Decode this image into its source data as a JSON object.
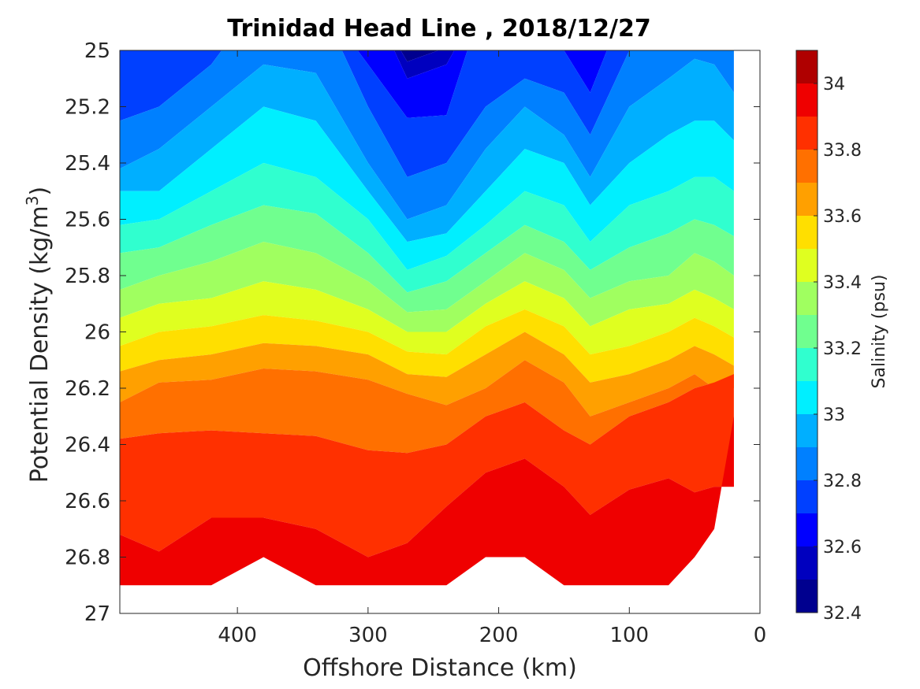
{
  "chart_data": {
    "type": "heatmap",
    "subtype": "filled-contour",
    "title": "Trinidad Head Line , 2018/12/27",
    "xlabel": "Offshore Distance (km)",
    "ylabel_main": "Potential Density (kg/m",
    "ylabel_sup": "3",
    "ylabel_close": ")",
    "colorbar_label": "Salinity (psu)",
    "xlim": [
      0,
      490
    ],
    "x_reversed": true,
    "ylim": [
      25,
      27
    ],
    "y_reversed": true,
    "x_ticks": [
      400,
      300,
      200,
      100,
      0
    ],
    "y_ticks": [
      25,
      25.2,
      25.4,
      25.6,
      25.8,
      26,
      26.2,
      26.4,
      26.6,
      26.8,
      27
    ],
    "y_tick_labels": [
      "25",
      "25.2",
      "25.4",
      "25.6",
      "25.8",
      "26",
      "26.2",
      "26.4",
      "26.6",
      "26.8",
      "27"
    ],
    "colorbar_range": [
      32.4,
      34.1
    ],
    "colorbar_ticks": [
      32.4,
      32.6,
      32.8,
      33,
      33.2,
      33.4,
      33.6,
      33.8,
      34
    ],
    "colorbar_tick_labels": [
      "32.4",
      "32.6",
      "32.8",
      "33",
      "33.2",
      "33.4",
      "33.6",
      "33.8",
      "34"
    ],
    "levels": [
      32.4,
      32.5,
      32.6,
      32.7,
      32.8,
      32.9,
      33.0,
      33.1,
      33.2,
      33.3,
      33.4,
      33.5,
      33.6,
      33.7,
      33.8,
      33.9,
      34.0,
      34.1
    ],
    "level_colors": [
      "#00008F",
      "#0000BF",
      "#0000FF",
      "#0040FF",
      "#0080FF",
      "#00AFFF",
      "#00EFFF",
      "#30FFCF",
      "#70FF8F",
      "#A0FF60",
      "#DFFF20",
      "#FFDF00",
      "#FFA000",
      "#FF7000",
      "#FF3000",
      "#EF0000",
      "#AF0000"
    ],
    "data_x": [
      20,
      35,
      50,
      70,
      100,
      130,
      150,
      180,
      210,
      240,
      270,
      300,
      340,
      380,
      420,
      460,
      490
    ],
    "data_extent": {
      "bottom_density": [
        26.3,
        26.7,
        26.8,
        26.9,
        26.9,
        26.9,
        26.9,
        26.8,
        26.8,
        26.9,
        26.9,
        26.9,
        26.9,
        26.8,
        26.9,
        26.9,
        26.9
      ]
    },
    "bottom_contour_boundaries": [
      {
        "name": "s33.9",
        "density": [
          26.15,
          26.18,
          26.2,
          26.25,
          26.3,
          26.4,
          26.35,
          26.25,
          26.3,
          26.4,
          26.43,
          26.42,
          26.37,
          26.36,
          26.35,
          26.36,
          26.38
        ]
      },
      {
        "name": "s34.0",
        "density": [
          26.55,
          26.55,
          26.57,
          26.52,
          26.56,
          26.65,
          26.55,
          26.45,
          26.5,
          26.62,
          26.75,
          26.8,
          26.7,
          26.66,
          26.66,
          26.78,
          26.72
        ]
      }
    ],
    "contour_boundaries": [
      {
        "name": "s32.4",
        "density": [
          24.8,
          24.8,
          24.8,
          24.8,
          24.8,
          24.8,
          24.8,
          24.8,
          24.8,
          24.8,
          24.8,
          24.8,
          24.8,
          24.8,
          24.8,
          24.8,
          24.8
        ]
      },
      {
        "name": "s32.5",
        "density": [
          24.8,
          24.8,
          24.8,
          24.8,
          24.8,
          24.8,
          24.8,
          24.8,
          24.8,
          24.99,
          25.04,
          24.8,
          24.8,
          24.8,
          24.8,
          24.8,
          24.8
        ]
      },
      {
        "name": "s32.6",
        "density": [
          24.8,
          24.8,
          24.8,
          24.8,
          24.8,
          24.8,
          24.8,
          24.8,
          24.8,
          25.05,
          25.1,
          24.8,
          24.8,
          24.8,
          24.8,
          24.8,
          24.8
        ]
      },
      {
        "name": "s32.7",
        "density": [
          24.8,
          24.8,
          24.8,
          24.8,
          24.8,
          25.15,
          25.0,
          24.8,
          24.8,
          25.23,
          25.24,
          25.05,
          24.8,
          24.8,
          24.8,
          25.0,
          24.99
        ]
      },
      {
        "name": "s32.8",
        "density": [
          24.8,
          24.8,
          24.8,
          24.95,
          25.0,
          25.3,
          25.15,
          25.1,
          25.2,
          25.4,
          25.45,
          25.2,
          24.8,
          24.8,
          25.05,
          25.2,
          25.25
        ]
      },
      {
        "name": "s32.9",
        "density": [
          25.15,
          25.05,
          25.03,
          25.1,
          25.2,
          25.45,
          25.3,
          25.2,
          25.35,
          25.55,
          25.6,
          25.4,
          25.08,
          25.05,
          25.2,
          25.35,
          25.42
        ]
      },
      {
        "name": "s33.0",
        "density": [
          25.32,
          25.25,
          25.25,
          25.3,
          25.4,
          25.55,
          25.4,
          25.35,
          25.5,
          25.65,
          25.68,
          25.5,
          25.25,
          25.2,
          25.35,
          25.5,
          25.5
        ]
      },
      {
        "name": "s33.1",
        "density": [
          25.5,
          25.45,
          25.45,
          25.5,
          25.55,
          25.68,
          25.55,
          25.5,
          25.62,
          25.73,
          25.78,
          25.6,
          25.45,
          25.4,
          25.5,
          25.6,
          25.62
        ]
      },
      {
        "name": "s33.2",
        "density": [
          25.66,
          25.62,
          25.6,
          25.65,
          25.7,
          25.78,
          25.68,
          25.62,
          25.72,
          25.82,
          25.86,
          25.72,
          25.58,
          25.55,
          25.62,
          25.7,
          25.72
        ]
      },
      {
        "name": "s33.3",
        "density": [
          25.8,
          25.75,
          25.72,
          25.8,
          25.82,
          25.88,
          25.78,
          25.72,
          25.82,
          25.92,
          25.93,
          25.82,
          25.72,
          25.68,
          25.75,
          25.8,
          25.85
        ]
      },
      {
        "name": "s33.4",
        "density": [
          25.92,
          25.88,
          25.85,
          25.9,
          25.92,
          25.98,
          25.88,
          25.82,
          25.9,
          26.0,
          26.0,
          25.92,
          25.85,
          25.82,
          25.88,
          25.9,
          25.95
        ]
      },
      {
        "name": "s33.5",
        "density": [
          26.02,
          25.98,
          25.95,
          26.0,
          26.05,
          26.08,
          25.98,
          25.92,
          25.98,
          26.08,
          26.07,
          26.0,
          25.96,
          25.94,
          25.98,
          26.0,
          26.05
        ]
      },
      {
        "name": "s33.6",
        "density": [
          26.12,
          26.08,
          26.05,
          26.1,
          26.15,
          26.18,
          26.08,
          26.0,
          26.08,
          26.16,
          26.15,
          26.08,
          26.05,
          26.04,
          26.08,
          26.1,
          26.14
        ]
      },
      {
        "name": "s33.7",
        "density": [
          26.2,
          26.2,
          26.15,
          26.2,
          26.25,
          26.3,
          26.18,
          26.1,
          26.2,
          26.26,
          26.22,
          26.17,
          26.14,
          26.13,
          26.17,
          26.18,
          26.25
        ]
      }
    ]
  }
}
